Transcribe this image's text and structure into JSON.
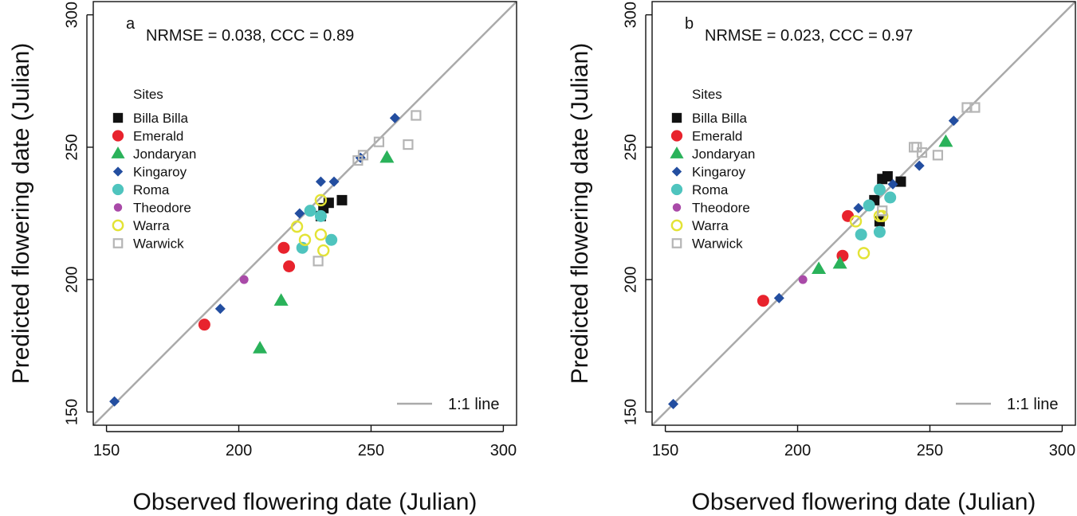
{
  "legend": {
    "title": "Sites",
    "sites": [
      {
        "name": "Billa Billa",
        "shape": "square",
        "color": "#111111",
        "filled": true
      },
      {
        "name": "Emerald",
        "shape": "circle",
        "color": "#e8232d",
        "filled": true
      },
      {
        "name": "Jondaryan",
        "shape": "triangle",
        "color": "#2ab25a",
        "filled": true
      },
      {
        "name": "Kingaroy",
        "shape": "diamond",
        "color": "#234ea0",
        "filled": true
      },
      {
        "name": "Roma",
        "shape": "circle",
        "color": "#4fc4be",
        "filled": true
      },
      {
        "name": "Theodore",
        "shape": "circle-small",
        "color": "#a94aa8",
        "filled": true
      },
      {
        "name": "Warra",
        "shape": "circle",
        "color": "#e3e335",
        "filled": false
      },
      {
        "name": "Warwick",
        "shape": "square",
        "color": "#b5b5b5",
        "filled": false
      }
    ],
    "line_label": "1:1 line",
    "line_color": "#aaaaaa"
  },
  "chart_data": [
    {
      "type": "scatter",
      "panel": "a",
      "stats": "NRMSE = 0.038,  CCC = 0.89",
      "xlabel": "Observed flowering date (Julian)",
      "ylabel": "Predicted flowering date (Julian)",
      "xlim": [
        145,
        305
      ],
      "ylim": [
        145,
        305
      ],
      "xticks": [
        150,
        200,
        250,
        300
      ],
      "yticks": [
        150,
        200,
        250,
        300
      ],
      "reference_line": "1:1",
      "series": [
        {
          "name": "Billa Billa",
          "points": [
            [
              232,
              227
            ],
            [
              234,
              229
            ],
            [
              239,
              230
            ],
            [
              231,
              224
            ]
          ]
        },
        {
          "name": "Emerald",
          "points": [
            [
              187,
              183
            ],
            [
              217,
              212
            ],
            [
              219,
              205
            ]
          ]
        },
        {
          "name": "Jondaryan",
          "points": [
            [
              208,
              174
            ],
            [
              216,
              192
            ],
            [
              256,
              246
            ]
          ]
        },
        {
          "name": "Kingaroy",
          "points": [
            [
              153,
              154
            ],
            [
              193,
              189
            ],
            [
              223,
              225
            ],
            [
              231,
              237
            ],
            [
              236,
              237
            ],
            [
              246,
              246
            ],
            [
              259,
              261
            ]
          ]
        },
        {
          "name": "Roma",
          "points": [
            [
              224,
              212
            ],
            [
              227,
              226
            ],
            [
              231,
              224
            ],
            [
              235,
              215
            ]
          ]
        },
        {
          "name": "Theodore",
          "points": [
            [
              202,
              200
            ]
          ]
        },
        {
          "name": "Warra",
          "points": [
            [
              222,
              220
            ],
            [
              225,
              215
            ],
            [
              231,
              217
            ],
            [
              232,
              211
            ],
            [
              231,
              230
            ]
          ]
        },
        {
          "name": "Warwick",
          "points": [
            [
              230,
              207
            ],
            [
              245,
              245
            ],
            [
              247,
              247
            ],
            [
              253,
              252
            ],
            [
              264,
              251
            ],
            [
              267,
              262
            ]
          ]
        }
      ]
    },
    {
      "type": "scatter",
      "panel": "b",
      "stats": "NRMSE = 0.023,  CCC = 0.97",
      "xlabel": "Observed flowering date (Julian)",
      "ylabel": "Predicted flowering date (Julian)",
      "xlim": [
        145,
        305
      ],
      "ylim": [
        145,
        305
      ],
      "xticks": [
        150,
        200,
        250,
        300
      ],
      "yticks": [
        150,
        200,
        250,
        300
      ],
      "reference_line": "1:1",
      "series": [
        {
          "name": "Billa Billa",
          "points": [
            [
              229,
              230
            ],
            [
              232,
              238
            ],
            [
              234,
              239
            ],
            [
              239,
              237
            ],
            [
              231,
              222
            ]
          ]
        },
        {
          "name": "Emerald",
          "points": [
            [
              187,
              192
            ],
            [
              217,
              209
            ],
            [
              219,
              224
            ]
          ]
        },
        {
          "name": "Jondaryan",
          "points": [
            [
              208,
              204
            ],
            [
              216,
              206
            ],
            [
              256,
              252
            ]
          ]
        },
        {
          "name": "Kingaroy",
          "points": [
            [
              153,
              153
            ],
            [
              193,
              193
            ],
            [
              223,
              227
            ],
            [
              236,
              236
            ],
            [
              246,
              243
            ],
            [
              259,
              260
            ]
          ]
        },
        {
          "name": "Roma",
          "points": [
            [
              224,
              217
            ],
            [
              227,
              228
            ],
            [
              231,
              234
            ],
            [
              235,
              231
            ],
            [
              231,
              218
            ]
          ]
        },
        {
          "name": "Theodore",
          "points": [
            [
              202,
              200
            ]
          ]
        },
        {
          "name": "Warra",
          "points": [
            [
              222,
              222
            ],
            [
              225,
              210
            ],
            [
              231,
              224
            ],
            [
              232,
              224
            ]
          ]
        },
        {
          "name": "Warwick",
          "points": [
            [
              232,
              226
            ],
            [
              244,
              250
            ],
            [
              245,
              250
            ],
            [
              247,
              248
            ],
            [
              253,
              247
            ],
            [
              264,
              265
            ],
            [
              267,
              265
            ]
          ]
        }
      ]
    }
  ]
}
